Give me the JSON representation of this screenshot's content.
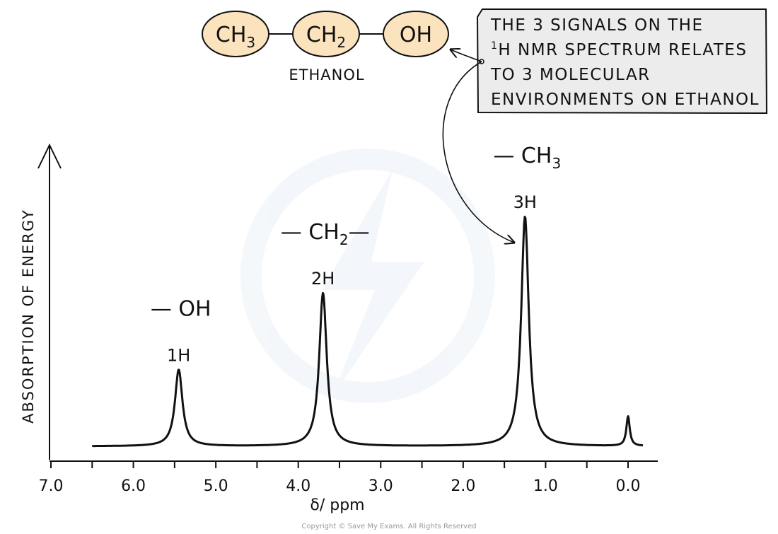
{
  "molecule": {
    "name": "ETHANOL",
    "groups": [
      {
        "main": "CH",
        "sub": "3"
      },
      {
        "main": "CH",
        "sub": "2"
      },
      {
        "main": "OH",
        "sub": ""
      }
    ],
    "fill_color": "#fbe3bd"
  },
  "callout": {
    "lines": [
      "THE 3 SIGNALS ON THE",
      "NMR SPECTRUM RELATES",
      "TO 3 MOLECULAR",
      "ENVIRONMENTS ON ETHANOL"
    ],
    "nucleus_mass": "1",
    "nucleus_symbol": "H",
    "fill_color": "#ececec"
  },
  "chart_data": {
    "type": "line",
    "xlabel_main": "δ",
    "xlabel_unit": "/ ppm",
    "ylabel": "ABSORPTION OF ENERGY",
    "xlim": [
      7.0,
      0.0
    ],
    "x_reversed": true,
    "tick_labels": [
      "7.0",
      "6.0",
      "5.0",
      "4.0",
      "3.0",
      "2.0",
      "1.0",
      "0.0"
    ],
    "tick_values": [
      7.0,
      6.0,
      5.0,
      4.0,
      3.0,
      2.0,
      1.0,
      0.0
    ],
    "peaks": [
      {
        "shift": 5.45,
        "integration": "1H",
        "group_prefix": "—",
        "group_main": "OH",
        "group_sub": "",
        "group_suffix": ""
      },
      {
        "shift": 3.7,
        "integration": "2H",
        "group_prefix": "—",
        "group_main": "CH",
        "group_sub": "2",
        "group_suffix": "—"
      },
      {
        "shift": 1.25,
        "integration": "3H",
        "group_prefix": "—",
        "group_main": "CH",
        "group_sub": "3",
        "group_suffix": ""
      }
    ],
    "reference_peak_shift": 0.0,
    "grid": false
  },
  "copyright": "Copyright © Save My Exams. All Rights Reserved"
}
